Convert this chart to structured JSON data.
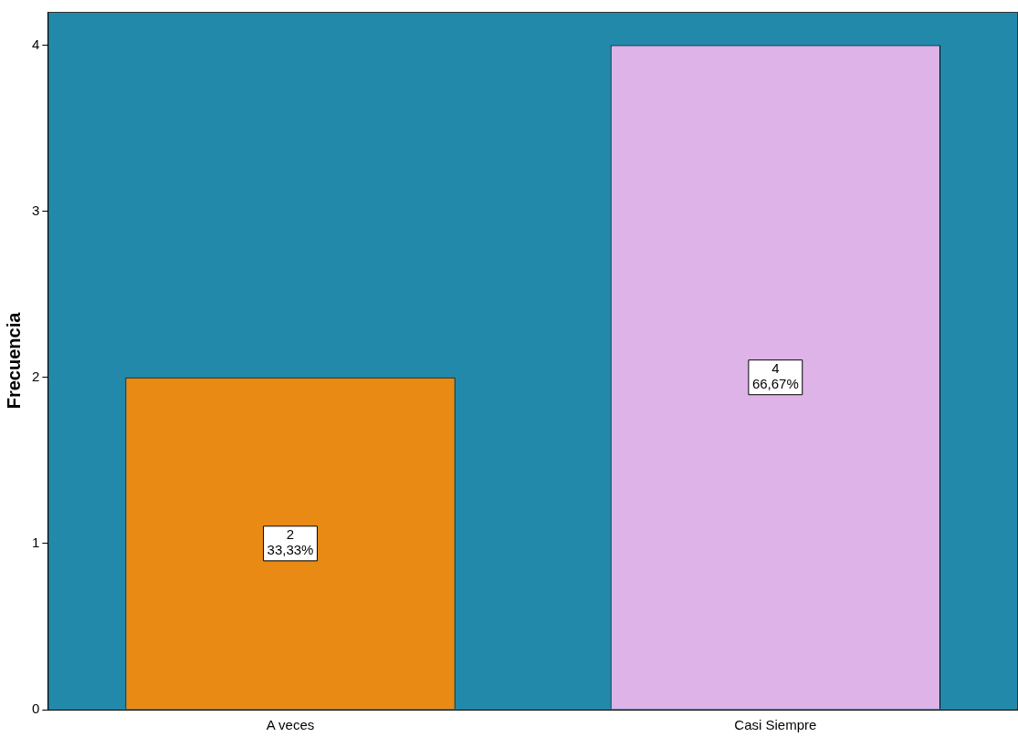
{
  "chart_data": {
    "type": "bar",
    "ylabel": "Frecuencia",
    "categories": [
      "A veces",
      "Casi Siempre"
    ],
    "values": [
      2,
      4
    ],
    "colors": [
      "#e88a14",
      "#ddb3e8"
    ],
    "value_labels": [
      "2\n33,33%",
      "4\n66,67%"
    ],
    "ylim": [
      0,
      4.2
    ],
    "yticks": [
      0,
      1,
      2,
      3,
      4
    ],
    "grid": false,
    "legend": false
  }
}
